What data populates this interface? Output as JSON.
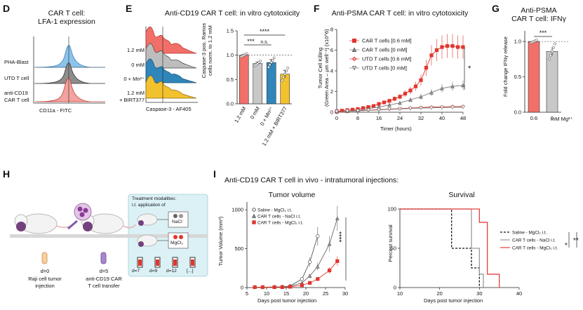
{
  "panels": {
    "D": {
      "letter": "D",
      "title": "CAR T cell:",
      "title2": "LFA-1 expression",
      "rows": [
        "PHA-Blast",
        "UTD T cell",
        "anti-CD19",
        "CAR T cell"
      ],
      "xlabel": "CD11a - FITC"
    },
    "E": {
      "letter": "E",
      "title": "Anti-CD19 CAR T cell: in vitro cytotoxicity",
      "rows": [
        "1.2 mM",
        "0 mM",
        "0 + Mn²⁺",
        "1.2 mM",
        "+ BIRT377"
      ],
      "xlabel": "Caspase-3 - AF405",
      "ylabel1": "Caspase-3 pos. Ramos",
      "ylabel2": "cells norm. to 1.2 mM",
      "sig": [
        "***",
        "n.s.",
        "****"
      ]
    },
    "F": {
      "letter": "F",
      "title": "Anti-PSMA CAR T cell: in vitro cytotoxicity",
      "ylabel1": "Tumor Cell Killing",
      "ylabel2": "(Green Area – μm well⁻¹) (x10^6)",
      "xlabel": "Timer (hours)",
      "sig": "*"
    },
    "G": {
      "letter": "G",
      "title": "Anti-PSMA",
      "title2": "CAR T cell: IFNγ",
      "ylabel": "Fold change IFNγ release",
      "sig": "***",
      "unit": "mM Mg²⁺"
    },
    "H": {
      "letter": "H",
      "box_title1": "Treatment modalities:",
      "box_title2": "i.t. application of",
      "nacl": "NaCl",
      "mgcl": "MgCl₂",
      "d0": "d=0",
      "d0a": "Raji cell tumor",
      "d0b": "injection",
      "d5": "d=5",
      "d5a": "anti-CD19 CAR",
      "d5b": "T cell transfer",
      "days": [
        "d=7",
        "d=9",
        "d=12",
        "[...]"
      ]
    },
    "I": {
      "letter": "I",
      "title": "Anti-CD19 CAR T cell in vivo - intratumoral injections:",
      "vol_title": "Tumor volume",
      "surv_title": "Survival",
      "vol_ylabel": "Tumor Volume (mm³)",
      "xlabel": "Days post tumor injection",
      "surv_ylabel": "Percent survival",
      "vol_sig": "****",
      "surv_sig": [
        "*",
        "**"
      ]
    }
  },
  "colors": {
    "red": "#e8413a",
    "gray": "#a7a7a7",
    "blue": "#2f7fb4",
    "yellow": "#f2bd2c",
    "lightblue": "#75b5e2",
    "pink": "#f2a3a0",
    "box": "#d9f0f4"
  },
  "chart_data": [
    {
      "id": "E",
      "type": "bar",
      "categories": [
        "1.2 mM",
        "0 mM",
        "0 + Mn²⁺",
        "1.2 mM + BIRT377"
      ],
      "values": [
        1.0,
        0.83,
        0.85,
        0.61
      ],
      "errors": [
        0.02,
        0.03,
        0.06,
        0.08
      ],
      "yticks": [
        "0.0",
        "0.5",
        "1.0",
        "1.5"
      ],
      "ylim": [
        0,
        1.5
      ],
      "colors": [
        "#f2706a",
        "#c8c8c8",
        "#2f86ba",
        "#f2c12e"
      ]
    },
    {
      "id": "F",
      "type": "line",
      "xticks": [
        0,
        8,
        16,
        24,
        32,
        40,
        48
      ],
      "yticks": [
        0,
        2,
        4,
        6,
        8
      ],
      "ylim": [
        0,
        8
      ],
      "xlim": [
        0,
        48
      ],
      "series": [
        {
          "name": "CAR T cells [0.6 mM]",
          "marker": "square",
          "color": "#e2352d",
          "points": [
            [
              0,
              0.1
            ],
            [
              2,
              0.15
            ],
            [
              4,
              0.2
            ],
            [
              6,
              0.25
            ],
            [
              8,
              0.3
            ],
            [
              10,
              0.4
            ],
            [
              12,
              0.5
            ],
            [
              14,
              0.6
            ],
            [
              16,
              0.8
            ],
            [
              18,
              0.95
            ],
            [
              20,
              1.1
            ],
            [
              22,
              1.3
            ],
            [
              24,
              1.5
            ],
            [
              26,
              1.8
            ],
            [
              28,
              2.1
            ],
            [
              30,
              2.5
            ],
            [
              32,
              3.1
            ],
            [
              34,
              4.3
            ],
            [
              36,
              5.5
            ],
            [
              38,
              6.0
            ],
            [
              40,
              6.3
            ],
            [
              42,
              6.4
            ],
            [
              44,
              6.4
            ],
            [
              46,
              6.3
            ],
            [
              48,
              6.3
            ]
          ]
        },
        {
          "name": "CAR T cells [0 mM]",
          "marker": "triangle",
          "color": "#7a7a7a",
          "points": [
            [
              0,
              0.05
            ],
            [
              4,
              0.1
            ],
            [
              8,
              0.2
            ],
            [
              12,
              0.35
            ],
            [
              16,
              0.5
            ],
            [
              20,
              0.7
            ],
            [
              24,
              0.9
            ],
            [
              28,
              1.2
            ],
            [
              32,
              1.5
            ],
            [
              36,
              1.9
            ],
            [
              40,
              2.3
            ],
            [
              44,
              2.5
            ],
            [
              48,
              2.6
            ]
          ]
        },
        {
          "name": "UTD T cells [0.6 mM]",
          "marker": "diamond",
          "color": "#e2352d",
          "points": [
            [
              0,
              0.05
            ],
            [
              4,
              0.1
            ],
            [
              8,
              0.15
            ],
            [
              12,
              0.2
            ],
            [
              16,
              0.25
            ],
            [
              20,
              0.3
            ],
            [
              24,
              0.35
            ],
            [
              28,
              0.4
            ],
            [
              32,
              0.45
            ],
            [
              36,
              0.5
            ],
            [
              40,
              0.5
            ],
            [
              44,
              0.55
            ],
            [
              48,
              0.55
            ]
          ]
        },
        {
          "name": "UTD T cells [0 mM]",
          "marker": "invtriangle",
          "color": "#7a7a7a",
          "points": [
            [
              0,
              0.05
            ],
            [
              4,
              0.1
            ],
            [
              8,
              0.12
            ],
            [
              12,
              0.18
            ],
            [
              16,
              0.22
            ],
            [
              20,
              0.28
            ],
            [
              24,
              0.32
            ],
            [
              28,
              0.36
            ],
            [
              32,
              0.4
            ],
            [
              36,
              0.42
            ],
            [
              40,
              0.45
            ],
            [
              44,
              0.47
            ],
            [
              48,
              0.48
            ]
          ]
        }
      ]
    },
    {
      "id": "G",
      "type": "bar",
      "categories": [
        "0.6",
        "0"
      ],
      "values": [
        1.0,
        0.86
      ],
      "errors": [
        0.01,
        0.06
      ],
      "yticks": [
        "0.0",
        "0.5",
        "1.0"
      ],
      "ylim": [
        0,
        1.15
      ],
      "colors": [
        "#f2706a",
        "#c8c8c8"
      ]
    },
    {
      "id": "I-volume",
      "type": "line",
      "xticks": [
        5,
        10,
        15,
        20,
        25,
        30
      ],
      "yticks": [
        0,
        500,
        1000
      ],
      "ylim": [
        0,
        1100
      ],
      "xlim": [
        5,
        30
      ],
      "series": [
        {
          "name": "Saline - MgCl₂ i.t.",
          "marker": "circle",
          "color": "#555",
          "points": [
            [
              7,
              5
            ],
            [
              9,
              5
            ],
            [
              12,
              8
            ],
            [
              14,
              10
            ],
            [
              16,
              20
            ],
            [
              19,
              110
            ],
            [
              21,
              330
            ],
            [
              23,
              660
            ]
          ]
        },
        {
          "name": "CAR T cells - NaCl i.t.",
          "marker": "triangle",
          "color": "#666",
          "points": [
            [
              7,
              5
            ],
            [
              9,
              5
            ],
            [
              12,
              5
            ],
            [
              14,
              8
            ],
            [
              16,
              15
            ],
            [
              19,
              60
            ],
            [
              21,
              150
            ],
            [
              23,
              270
            ],
            [
              26,
              560
            ],
            [
              28,
              890
            ]
          ]
        },
        {
          "name": "CAR T cells - MgCl₂ i.t.",
          "marker": "square",
          "color": "#e2352d",
          "points": [
            [
              7,
              5
            ],
            [
              9,
              5
            ],
            [
              12,
              5
            ],
            [
              14,
              5
            ],
            [
              16,
              10
            ],
            [
              19,
              30
            ],
            [
              21,
              60
            ],
            [
              23,
              110
            ],
            [
              26,
              220
            ],
            [
              28,
              340
            ]
          ]
        }
      ]
    },
    {
      "id": "I-survival",
      "type": "line",
      "xticks": [
        10,
        20,
        30,
        40
      ],
      "yticks": [
        0,
        50,
        100
      ],
      "ylim": [
        0,
        100
      ],
      "xlim": [
        10,
        40
      ],
      "series": [
        {
          "name": "Saline - MgCl₂ i.t.",
          "style": "dashed",
          "color": "#111",
          "points": [
            [
              10,
              100
            ],
            [
              23,
              100
            ],
            [
              23,
              50
            ],
            [
              28,
              50
            ],
            [
              28,
              25
            ],
            [
              30,
              25
            ],
            [
              30,
              0
            ]
          ]
        },
        {
          "name": "CAR T cells - NaCl i.t.",
          "style": "solid",
          "color": "#9a9a9a",
          "points": [
            [
              10,
              100
            ],
            [
              28,
              100
            ],
            [
              28,
              50
            ],
            [
              30,
              50
            ],
            [
              30,
              17
            ],
            [
              31,
              17
            ],
            [
              31,
              0
            ]
          ]
        },
        {
          "name": "CAR T cells - MgCl₂ i.t.",
          "style": "solid",
          "color": "#e8413a",
          "points": [
            [
              10,
              100
            ],
            [
              30,
              100
            ],
            [
              30,
              83
            ],
            [
              32,
              83
            ],
            [
              32,
              17
            ],
            [
              35,
              17
            ],
            [
              35,
              0
            ]
          ]
        }
      ]
    }
  ]
}
